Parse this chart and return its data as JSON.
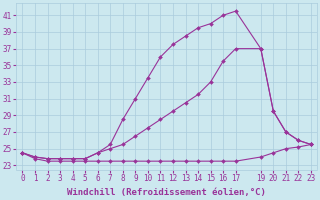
{
  "background_color": "#cce8ef",
  "grid_color": "#aaccdd",
  "line_color": "#993399",
  "marker": "D",
  "marker_size": 2.0,
  "line_width": 0.8,
  "xlabel": "Windchill (Refroidissement éolien,°C)",
  "xlabel_fontsize": 6.5,
  "tick_fontsize": 5.5,
  "xlim": [
    -0.5,
    23.5
  ],
  "ylim": [
    22.5,
    42.5
  ],
  "yticks": [
    23,
    25,
    27,
    29,
    31,
    33,
    35,
    37,
    39,
    41
  ],
  "xticks": [
    0,
    1,
    2,
    3,
    4,
    5,
    6,
    7,
    8,
    9,
    10,
    11,
    12,
    13,
    14,
    15,
    16,
    17,
    19,
    20,
    21,
    22,
    23
  ],
  "series": [
    {
      "x": [
        0,
        1,
        2,
        3,
        4,
        5,
        6,
        7,
        8,
        9,
        10,
        11,
        12,
        13,
        14,
        15,
        16,
        17,
        19,
        20,
        21,
        22,
        23
      ],
      "y": [
        24.5,
        23.8,
        23.5,
        23.5,
        23.5,
        23.5,
        23.5,
        23.5,
        23.5,
        23.5,
        23.5,
        23.5,
        23.5,
        23.5,
        23.5,
        23.5,
        23.5,
        23.5,
        24.0,
        24.5,
        25.0,
        25.2,
        25.5
      ]
    },
    {
      "x": [
        0,
        1,
        2,
        3,
        4,
        5,
        6,
        7,
        8,
        9,
        10,
        11,
        12,
        13,
        14,
        15,
        16,
        17,
        19,
        20,
        21,
        22,
        23
      ],
      "y": [
        24.5,
        24.0,
        23.8,
        23.8,
        23.8,
        23.8,
        24.5,
        25.5,
        28.5,
        31.0,
        33.5,
        36.0,
        37.5,
        38.5,
        39.5,
        40.0,
        41.0,
        41.5,
        37.0,
        29.5,
        27.0,
        26.0,
        25.5
      ]
    },
    {
      "x": [
        0,
        1,
        2,
        3,
        4,
        5,
        6,
        7,
        8,
        9,
        10,
        11,
        12,
        13,
        14,
        15,
        16,
        17,
        19,
        20,
        21,
        22,
        23
      ],
      "y": [
        24.5,
        24.0,
        23.8,
        23.8,
        23.8,
        23.8,
        24.5,
        25.0,
        25.5,
        26.5,
        27.5,
        28.5,
        29.5,
        30.5,
        31.5,
        33.0,
        35.5,
        37.0,
        37.0,
        29.5,
        27.0,
        26.0,
        25.5
      ]
    }
  ]
}
